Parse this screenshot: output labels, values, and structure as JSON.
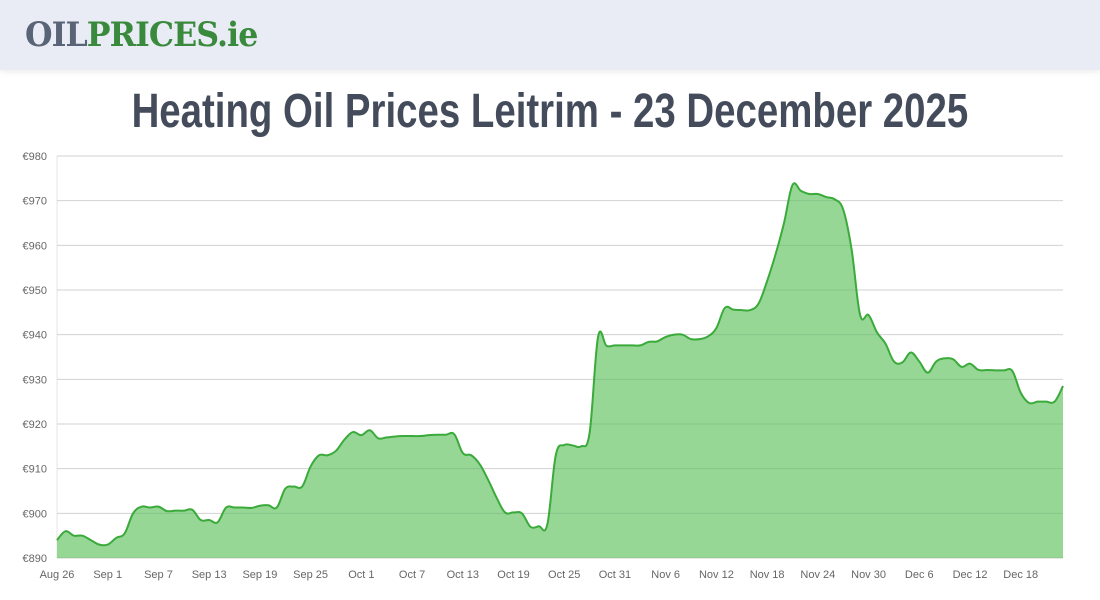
{
  "header": {
    "logo_part1": "OIL",
    "logo_part2": "PRICES.ie"
  },
  "page_title": "Heating Oil Prices Leitrim - 23 December 2025",
  "colors": {
    "line": "#3aaa3a",
    "fill": "#90d590",
    "grid": "#e4e4e4",
    "title": "#444c5c"
  },
  "chart_data": {
    "type": "area",
    "title": "",
    "xlabel": "",
    "ylabel": "",
    "ylim": [
      890,
      980
    ],
    "y_ticks": [
      "€890",
      "€900",
      "€910",
      "€920",
      "€930",
      "€940",
      "€950",
      "€960",
      "€970",
      "€980"
    ],
    "x_ticks": [
      "Aug 26",
      "Sep 1",
      "Sep 7",
      "Sep 13",
      "Sep 19",
      "Sep 25",
      "Oct 1",
      "Oct 7",
      "Oct 13",
      "Oct 19",
      "Oct 25",
      "Oct 31",
      "Nov 6",
      "Nov 12",
      "Nov 18",
      "Nov 24",
      "Nov 30",
      "Dec 6",
      "Dec 12",
      "Dec 18"
    ],
    "grid": true,
    "legend": "none",
    "x": [
      "2025-08-26",
      "2025-08-27",
      "2025-08-28",
      "2025-08-29",
      "2025-08-30",
      "2025-08-31",
      "2025-09-01",
      "2025-09-02",
      "2025-09-03",
      "2025-09-04",
      "2025-09-05",
      "2025-09-06",
      "2025-09-07",
      "2025-09-08",
      "2025-09-09",
      "2025-09-10",
      "2025-09-11",
      "2025-09-12",
      "2025-09-13",
      "2025-09-14",
      "2025-09-15",
      "2025-09-16",
      "2025-09-17",
      "2025-09-18",
      "2025-09-19",
      "2025-09-20",
      "2025-09-21",
      "2025-09-22",
      "2025-09-23",
      "2025-09-24",
      "2025-09-25",
      "2025-09-26",
      "2025-09-27",
      "2025-09-28",
      "2025-09-29",
      "2025-09-30",
      "2025-10-01",
      "2025-10-02",
      "2025-10-03",
      "2025-10-04",
      "2025-10-05",
      "2025-10-06",
      "2025-10-07",
      "2025-10-08",
      "2025-10-09",
      "2025-10-10",
      "2025-10-11",
      "2025-10-12",
      "2025-10-13",
      "2025-10-14",
      "2025-10-15",
      "2025-10-16",
      "2025-10-17",
      "2025-10-18",
      "2025-10-19",
      "2025-10-20",
      "2025-10-21",
      "2025-10-22",
      "2025-10-23",
      "2025-10-24",
      "2025-10-25",
      "2025-10-26",
      "2025-10-27",
      "2025-10-28",
      "2025-10-29",
      "2025-10-30",
      "2025-10-31",
      "2025-11-01",
      "2025-11-02",
      "2025-11-03",
      "2025-11-04",
      "2025-11-05",
      "2025-11-06",
      "2025-11-07",
      "2025-11-08",
      "2025-11-09",
      "2025-11-10",
      "2025-11-11",
      "2025-11-12",
      "2025-11-13",
      "2025-11-14",
      "2025-11-15",
      "2025-11-16",
      "2025-11-17",
      "2025-11-18",
      "2025-11-19",
      "2025-11-20",
      "2025-11-21",
      "2025-11-22",
      "2025-11-23",
      "2025-11-24",
      "2025-11-25",
      "2025-11-26",
      "2025-11-27",
      "2025-11-28",
      "2025-11-29",
      "2025-11-30",
      "2025-12-01",
      "2025-12-02",
      "2025-12-03",
      "2025-12-04",
      "2025-12-05",
      "2025-12-06",
      "2025-12-07",
      "2025-12-08",
      "2025-12-09",
      "2025-12-10",
      "2025-12-11",
      "2025-12-12",
      "2025-12-13",
      "2025-12-14",
      "2025-12-15",
      "2025-12-16",
      "2025-12-17",
      "2025-12-18",
      "2025-12-19",
      "2025-12-20",
      "2025-12-21",
      "2025-12-22",
      "2025-12-23"
    ],
    "values": [
      894,
      896,
      895,
      895,
      894,
      893,
      893,
      894.5,
      895.5,
      900,
      901.5,
      901.3,
      901.5,
      900.5,
      900.6,
      900.6,
      900.8,
      898.5,
      898.5,
      898,
      901.3,
      901.3,
      901.3,
      901.2,
      901.7,
      901.8,
      901.3,
      905.5,
      906,
      906,
      910.5,
      913,
      913,
      914,
      916.5,
      918.2,
      917.5,
      918.6,
      916.8,
      917,
      917.2,
      917.3,
      917.3,
      917.3,
      917.5,
      917.6,
      917.6,
      917.7,
      913.5,
      913,
      911,
      907.5,
      903.5,
      900.2,
      900.2,
      900,
      897,
      897.1,
      897.5,
      913,
      915.3,
      915.2,
      915,
      918,
      939.5,
      937.5,
      937.6,
      937.6,
      937.6,
      937.6,
      938.4,
      938.5,
      939.5,
      940,
      940,
      939,
      939,
      939.6,
      941.5,
      946,
      945.6,
      945.5,
      945.5,
      947,
      952,
      958,
      965,
      973.5,
      972.2,
      971.5,
      971.5,
      970.8,
      970.3,
      968,
      959,
      944.4,
      944.4,
      940.5,
      938,
      934,
      933.8,
      936,
      934,
      931.5,
      934,
      934.7,
      934.5,
      932.8,
      933.5,
      932.1,
      932.1,
      932,
      932,
      931.9,
      927,
      924.7,
      925,
      925,
      925,
      928.5
    ]
  }
}
